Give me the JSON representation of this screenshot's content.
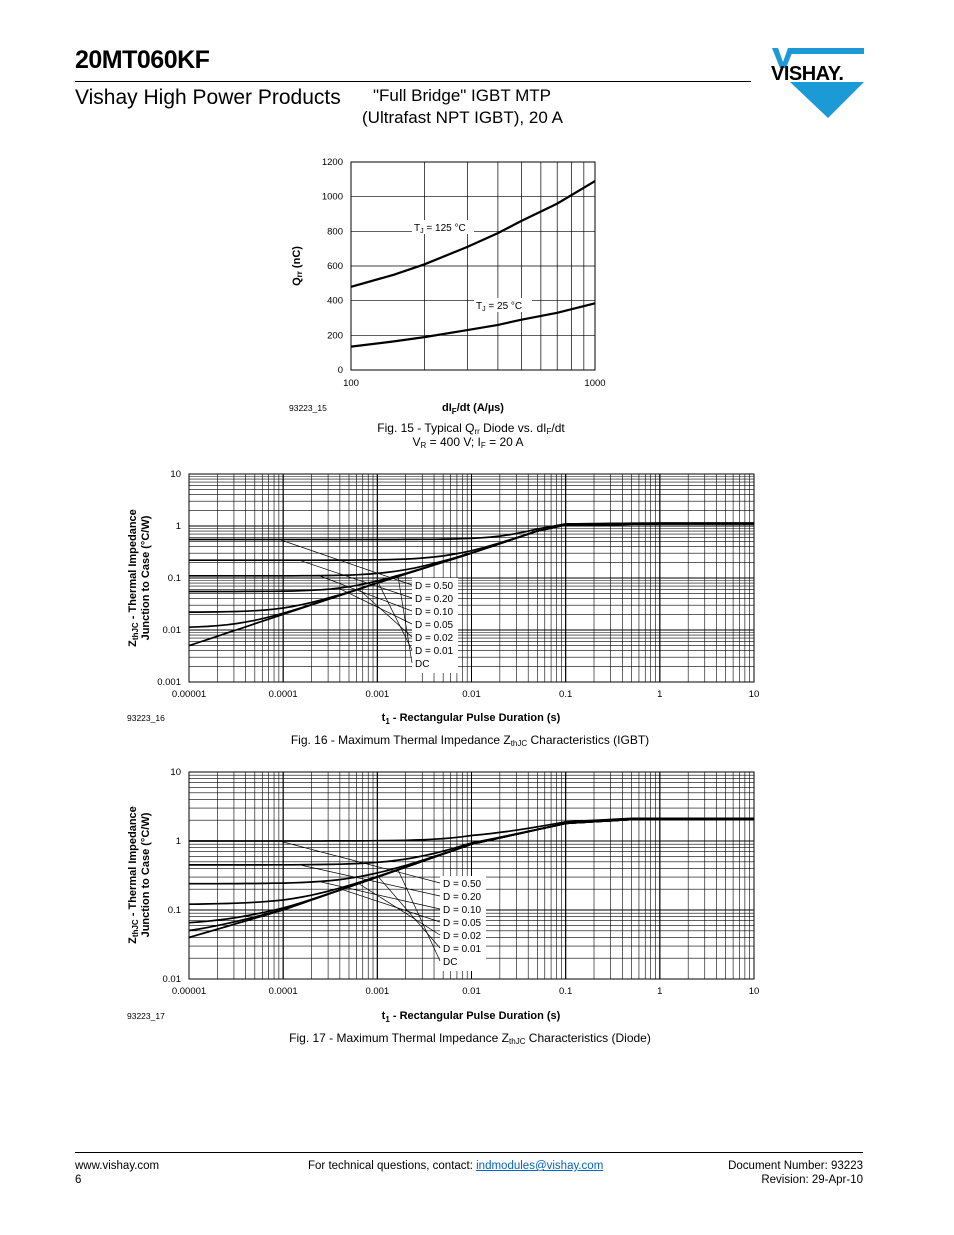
{
  "header": {
    "part_number": "20MT060KF",
    "division": "Vishay High Power Products",
    "product_line1": "\"Full Bridge\" IGBT MTP",
    "product_line2": "(Ultrafast NPT IGBT), 20 A",
    "logo_text": "VISHAY.",
    "brand_color": "#1c9ad6"
  },
  "footer": {
    "website": "www.vishay.com",
    "page": "6",
    "contact_prefix": "For technical questions, contact: ",
    "contact_email": "indmodules@vishay.com",
    "document_number": "Document Number: 93223",
    "revision": "Revision: 29-Apr-10"
  },
  "chart_data": [
    {
      "type": "line",
      "figure_id": "93223_15",
      "caption_prefix": "Fig. 15 - Typical Q",
      "caption_sub": "rr",
      "caption_suffix": " Diode vs. dI",
      "caption_sub2": "F",
      "caption_suffix2": "/dt",
      "caption_line2_a": "V",
      "caption_line2_sub": "R",
      "caption_line2_b": " = 400 V; I",
      "caption_line2_sub2": "F",
      "caption_line2_c": " = 20 A",
      "xlabel_main": "dI",
      "xlabel_sub": "F",
      "xlabel_rest": "/dt (A/µs)",
      "ylabel_main": "Q",
      "ylabel_sub": "rr",
      "ylabel_rest": " (nC)",
      "x_scale": "log",
      "xlim": [
        100,
        1000
      ],
      "ylim": [
        0,
        1200
      ],
      "x_ticks": [
        "100",
        "1000"
      ],
      "y_ticks": [
        "0",
        "200",
        "400",
        "600",
        "800",
        "1000",
        "1200"
      ],
      "grid": true,
      "series": [
        {
          "name": "TJ = 125 °C",
          "label_main": "T",
          "label_sub": "J",
          "label_rest": " = 125 °C",
          "x": [
            100,
            150,
            200,
            300,
            400,
            500,
            700,
            1000
          ],
          "y": [
            480,
            550,
            610,
            710,
            790,
            860,
            960,
            1090
          ]
        },
        {
          "name": "TJ = 25 °C",
          "label_main": "T",
          "label_sub": "J",
          "label_rest": " = 25 °C",
          "x": [
            100,
            150,
            200,
            300,
            400,
            500,
            700,
            1000
          ],
          "y": [
            135,
            165,
            190,
            230,
            260,
            290,
            330,
            385
          ]
        }
      ]
    },
    {
      "type": "line",
      "figure_id": "93223_16",
      "caption_prefix": "Fig. 16 - Maximum Thermal Impedance Z",
      "caption_sub": "thJC",
      "caption_suffix": " Characteristics (IGBT)",
      "xlabel_main": "t",
      "xlabel_sub": "1",
      "xlabel_rest": " - Rectangular Pulse Duration (s)",
      "ylabel_main": "Z",
      "ylabel_sub": "thJC",
      "ylabel_rest": " - Thermal Impedance",
      "ylabel_line2": "Junction to Case (°C/W)",
      "x_scale": "log",
      "y_scale": "log",
      "xlim": [
        1e-05,
        10
      ],
      "ylim": [
        0.001,
        10
      ],
      "x_ticks": [
        "0.00001",
        "0.0001",
        "0.001",
        "0.01",
        "0.1",
        "1",
        "10"
      ],
      "y_ticks": [
        "0.001",
        "0.01",
        "0.1",
        "1",
        "10"
      ],
      "grid": true,
      "legend": [
        "D = 0.50",
        "D = 0.20",
        "D = 0.10",
        "D = 0.05",
        "D = 0.02",
        "D = 0.01",
        "DC"
      ],
      "single_pulse": {
        "x": [
          1e-05,
          0.0001,
          0.001,
          0.01,
          0.05,
          0.1,
          1,
          10
        ],
        "y": [
          0.005,
          0.02,
          0.08,
          0.3,
          0.8,
          1.05,
          1.1,
          1.1
        ]
      },
      "duty_floors": [
        0.55,
        0.22,
        0.11,
        0.055,
        0.022,
        0.011,
        0
      ]
    },
    {
      "type": "line",
      "figure_id": "93223_17",
      "caption_prefix": "Fig. 17 - Maximum Thermal Impedance Z",
      "caption_sub": "thJC",
      "caption_suffix": " Characteristics (Diode)",
      "xlabel_main": "t",
      "xlabel_sub": "1",
      "xlabel_rest": " - Rectangular Pulse Duration (s)",
      "ylabel_main": "Z",
      "ylabel_sub": "thJC",
      "ylabel_rest": " - Thermal Impedance",
      "ylabel_line2": "Junction to Case (°C/W)",
      "x_scale": "log",
      "y_scale": "log",
      "xlim": [
        1e-05,
        10
      ],
      "ylim": [
        0.01,
        10
      ],
      "x_ticks": [
        "0.00001",
        "0.0001",
        "0.001",
        "0.01",
        "0.1",
        "1",
        "10"
      ],
      "y_ticks": [
        "0.01",
        "0.1",
        "1",
        "10"
      ],
      "grid": true,
      "legend": [
        "D = 0.50",
        "D = 0.20",
        "D = 0.10",
        "D = 0.05",
        "D = 0.02",
        "D = 0.01",
        "DC"
      ],
      "single_pulse": {
        "x": [
          1e-05,
          0.0001,
          0.001,
          0.01,
          0.1,
          0.5,
          1,
          10
        ],
        "y": [
          0.04,
          0.1,
          0.3,
          0.9,
          1.8,
          2.05,
          2.05,
          2.05
        ]
      },
      "duty_floors": [
        1.0,
        0.45,
        0.24,
        0.12,
        0.06,
        0.04,
        0
      ]
    }
  ]
}
